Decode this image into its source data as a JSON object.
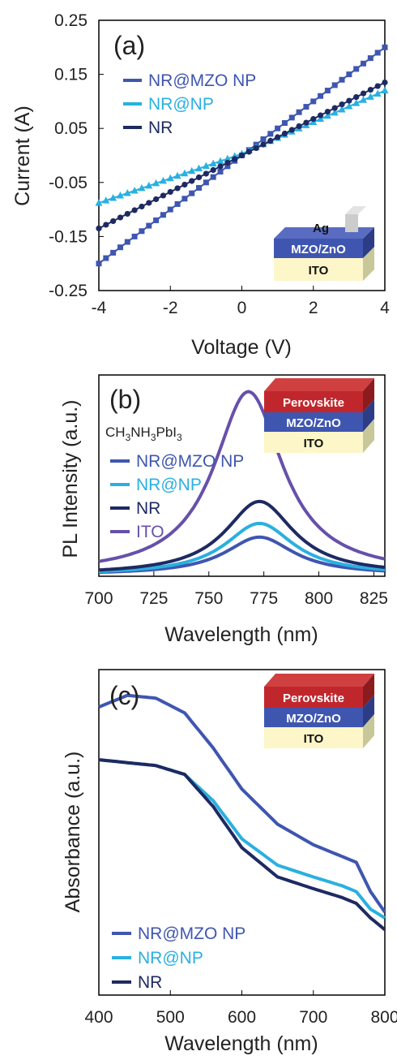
{
  "chart_data": [
    {
      "type": "line",
      "panel_label": "(a)",
      "xlabel": "Voltage (V)",
      "ylabel": "Current (A)",
      "xlim": [
        -4,
        4
      ],
      "ylim": [
        -0.25,
        0.25
      ],
      "xticks": [
        "-4",
        "-2",
        "0",
        "2",
        "4"
      ],
      "yticks": [
        "0.25",
        "0.15",
        "0.05",
        "-0.05",
        "-0.15",
        "-0.25"
      ],
      "legend_position": "top-left",
      "series": [
        {
          "name": "NR@MZO NP",
          "color": "#3f56b0",
          "marker": "square",
          "x": [
            -4,
            0,
            4
          ],
          "y": [
            -0.2,
            0.0,
            0.2
          ]
        },
        {
          "name": "NR@NP",
          "color": "#2ab0e0",
          "marker": "triangle",
          "x": [
            -4,
            0,
            4
          ],
          "y": [
            -0.088,
            0.003,
            0.12
          ]
        },
        {
          "name": "NR",
          "color": "#1e2a62",
          "marker": "circle",
          "x": [
            -4,
            0,
            4
          ],
          "y": [
            -0.135,
            0.0,
            0.135
          ]
        }
      ],
      "inset": {
        "layers": [
          "Ag",
          "MZO/ZnO",
          "ITO"
        ]
      }
    },
    {
      "type": "line",
      "panel_label": "(b)",
      "xlabel": "Wavelength (nm)",
      "ylabel": "PL Intensity (a.u.)",
      "xlim": [
        700,
        830
      ],
      "xticks": [
        "700",
        "725",
        "750",
        "775",
        "800",
        "825"
      ],
      "legend_title": "CH3NH3PbI3",
      "legend_position": "top-left",
      "series": [
        {
          "name": "NR@MZO NP",
          "color": "#3f56b0",
          "peak_x": 773,
          "peak_y": 0.205
        },
        {
          "name": "NR@NP",
          "color": "#2ab0e0",
          "peak_x": 773,
          "peak_y": 0.28
        },
        {
          "name": "NR",
          "color": "#1e2a62",
          "peak_x": 773,
          "peak_y": 0.4
        },
        {
          "name": "ITO",
          "color": "#6750aa",
          "peak_x": 768,
          "peak_y": 1.0
        }
      ],
      "inset": {
        "layers": [
          "Perovskite",
          "MZO/ZnO",
          "ITO"
        ]
      }
    },
    {
      "type": "line",
      "panel_label": "(c)",
      "xlabel": "Wavelength (nm)",
      "ylabel": "Absorbance (a.u.)",
      "xlim": [
        400,
        800
      ],
      "xticks": [
        "400",
        "500",
        "600",
        "700",
        "800"
      ],
      "legend_position": "bottom-left",
      "series": [
        {
          "name": "NR@MZO NP",
          "color": "#3f56b0",
          "x": [
            400,
            440,
            480,
            520,
            560,
            600,
            650,
            700,
            740,
            760,
            780,
            800
          ],
          "y": [
            0.9,
            0.94,
            0.93,
            0.88,
            0.76,
            0.62,
            0.5,
            0.43,
            0.39,
            0.37,
            0.27,
            0.2
          ]
        },
        {
          "name": "NR@NP",
          "color": "#2ab0e0",
          "x": [
            400,
            440,
            480,
            520,
            560,
            600,
            650,
            700,
            740,
            760,
            780,
            800
          ],
          "y": [
            0.72,
            0.71,
            0.7,
            0.67,
            0.58,
            0.45,
            0.36,
            0.32,
            0.29,
            0.27,
            0.21,
            0.18
          ]
        },
        {
          "name": "NR",
          "color": "#1e2a62",
          "x": [
            400,
            440,
            480,
            520,
            560,
            600,
            650,
            700,
            740,
            760,
            780,
            800
          ],
          "y": [
            0.72,
            0.71,
            0.7,
            0.67,
            0.56,
            0.42,
            0.32,
            0.28,
            0.25,
            0.23,
            0.18,
            0.14
          ]
        }
      ],
      "inset": {
        "layers": [
          "Perovskite",
          "MZO/ZnO",
          "ITO"
        ]
      }
    }
  ]
}
